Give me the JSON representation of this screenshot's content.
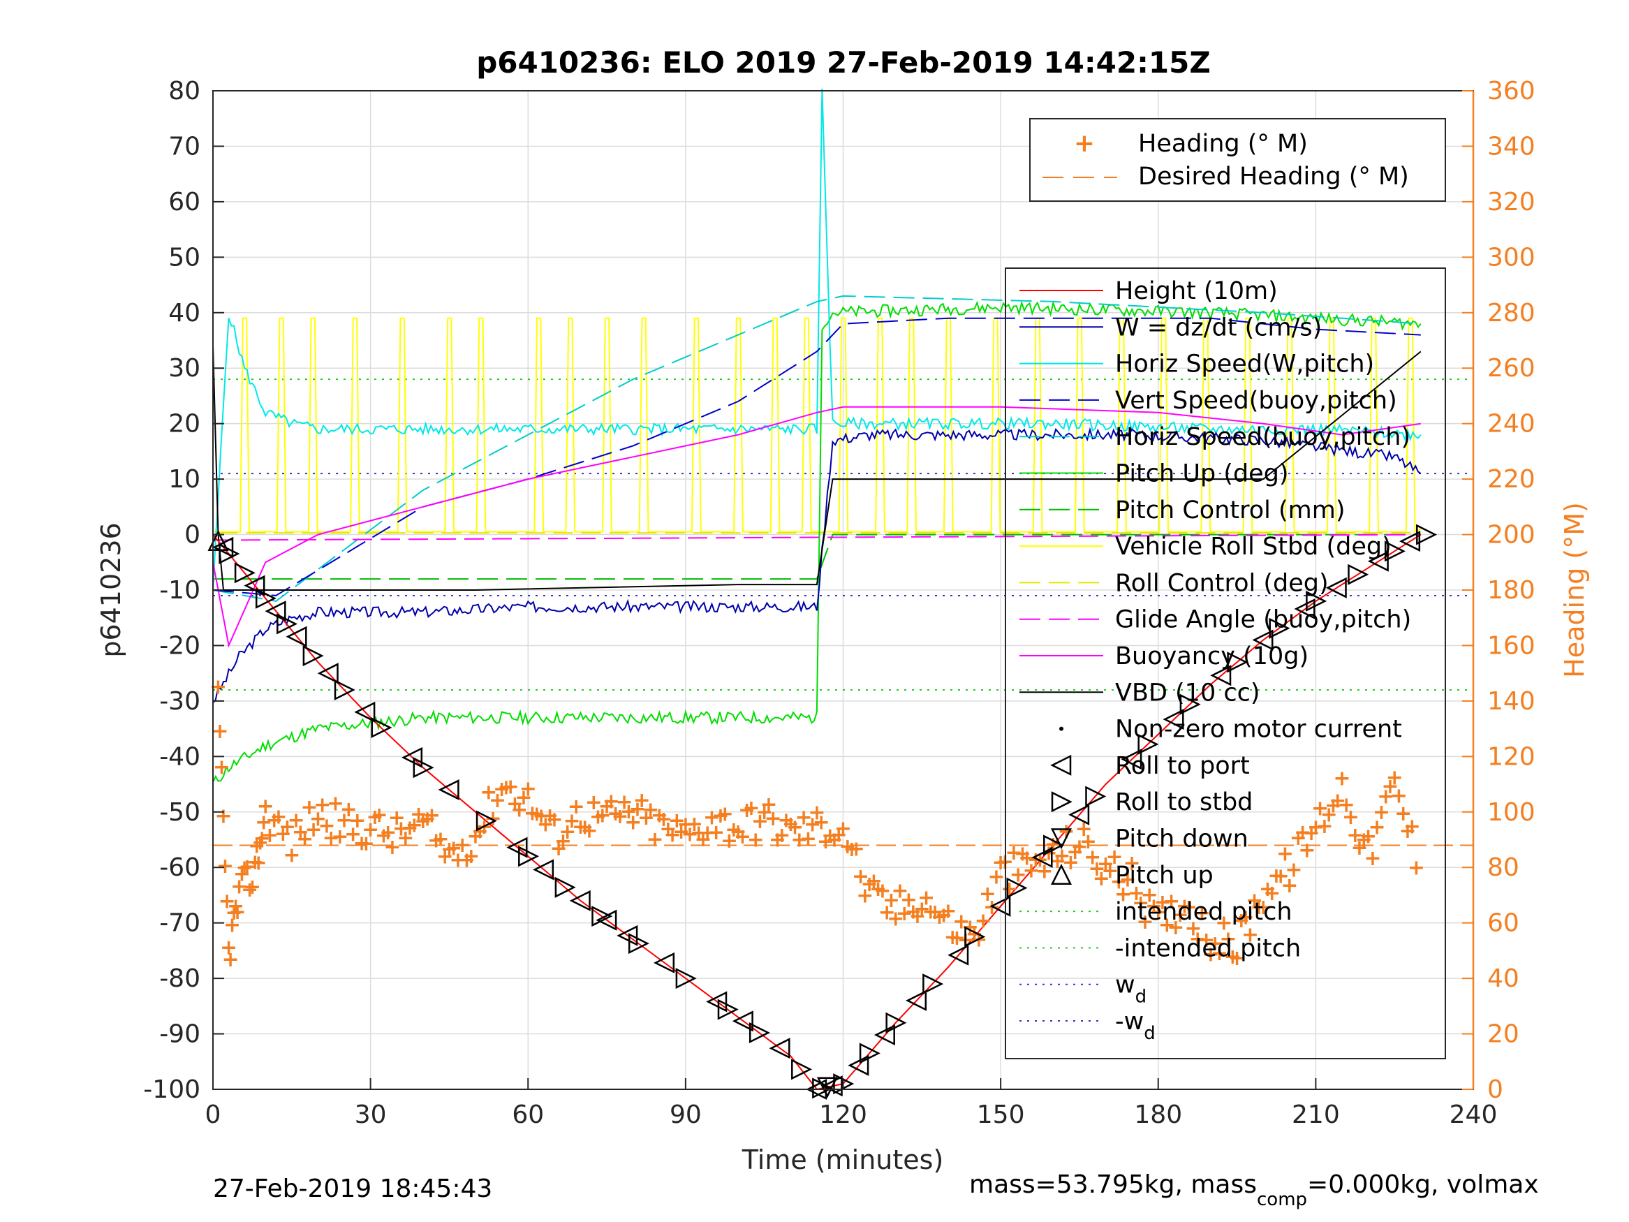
{
  "chart_data": {
    "type": "line",
    "title": "p6410236: ELO 2019 27-Feb-2019 14:42:15Z",
    "xlabel": "Time (minutes)",
    "ylabel_left": "p6410236",
    "ylabel_right": "Heading (°M)",
    "xlim": [
      0,
      240
    ],
    "ylim_left": [
      -100,
      80
    ],
    "ylim_right": [
      0,
      360
    ],
    "x_ticks": [
      "0",
      "30",
      "60",
      "90",
      "120",
      "150",
      "180",
      "210",
      "240"
    ],
    "y_ticks_left": [
      "80",
      "70",
      "60",
      "50",
      "40",
      "30",
      "20",
      "10",
      "0",
      "-10",
      "-20",
      "-30",
      "-40",
      "-50",
      "-60",
      "-70",
      "-80",
      "-90",
      "-100"
    ],
    "y_ticks_right": [
      "360",
      "340",
      "320",
      "300",
      "280",
      "260",
      "240",
      "220",
      "200",
      "180",
      "160",
      "140",
      "120",
      "100",
      "80",
      "60",
      "40",
      "20",
      "0"
    ],
    "grid": true,
    "colors": {
      "height": "#ff0000",
      "w": "#0000aa",
      "horiz_w": "#00e8e8",
      "vert_buoy": "#0000cc",
      "horiz_buoy": "#00cccc",
      "pitch_up": "#00dd00",
      "pitch_control": "#00bb00",
      "roll": "#ffff00",
      "roll_control": "#e6e600",
      "glide": "#ff00ff",
      "buoyancy": "#ff00ff",
      "vbd": "#000000",
      "heading": "#f47f20",
      "intended_pitch": "#22cc22",
      "wd": "#3333cc"
    },
    "legend_top": {
      "placement": "top-right",
      "items": [
        "Heading (° M)",
        "Desired Heading (° M)"
      ]
    },
    "legend_main": {
      "placement": "right",
      "items": [
        "Height (10m)",
        "W = dz/dt (cm/s)",
        "Horiz Speed(W,pitch)",
        "Vert Speed(buoy,pitch)",
        "Horiz Speed(buoy,pitch)",
        "Pitch Up (deg)",
        "Pitch Control (mm)",
        "Vehicle Roll Stbd (deg)",
        "Roll Control (deg)",
        "Glide Angle (buoy,pitch)",
        "Buoyancy (10g)",
        "VBD (10 cc)",
        "Non-zero motor current",
        "Roll to port",
        "Roll to stbd",
        "Pitch down",
        "Pitch up",
        "intended pitch",
        "-intended pitch"
      ],
      "wd_label": "w",
      "wd_sub": "d",
      "neg_wd_label": "-w",
      "neg_wd_sub": "d"
    },
    "series": [
      {
        "name": "Height (10m)",
        "x": [
          0,
          10,
          20,
          30,
          40,
          50,
          60,
          70,
          80,
          90,
          100,
          110,
          115,
          120,
          130,
          140,
          150,
          160,
          170,
          180,
          190,
          200,
          210,
          220,
          230
        ],
        "y": [
          0,
          -11.5,
          -23,
          -33,
          -42,
          -50,
          -58,
          -66,
          -73,
          -80,
          -87,
          -94,
          -100,
          -99,
          -88,
          -78,
          -67,
          -56,
          -45,
          -36,
          -27,
          -19,
          -12,
          -6,
          0
        ]
      },
      {
        "name": "W = dz/dt (cm/s)",
        "x": [
          0,
          5,
          10,
          15,
          20,
          40,
          60,
          80,
          100,
          115,
          118,
          125,
          150,
          175,
          200,
          225,
          230
        ],
        "y": [
          -30,
          -22,
          -17,
          -15,
          -14,
          -14,
          -13,
          -13,
          -13,
          -13,
          17,
          18,
          18,
          18,
          17,
          14,
          11
        ]
      },
      {
        "name": "Horiz Speed(W,pitch)",
        "x": [
          0,
          3,
          6,
          10,
          15,
          20,
          40,
          60,
          80,
          100,
          115,
          116,
          118,
          130,
          160,
          190,
          210,
          230
        ],
        "y": [
          -10,
          40,
          30,
          22,
          20,
          19,
          19,
          19,
          19,
          19,
          19,
          80,
          20,
          20,
          20,
          19,
          19,
          18
        ]
      },
      {
        "name": "Vert Speed(buoy,pitch)",
        "x": [
          0,
          12,
          40,
          60,
          80,
          100,
          115,
          120,
          140,
          160,
          190,
          210,
          230
        ],
        "y": [
          -10,
          -11,
          5,
          10,
          16,
          24,
          33,
          38,
          39,
          39,
          39,
          37,
          36
        ]
      },
      {
        "name": "Horiz Speed(buoy,pitch)",
        "x": [
          0,
          12,
          40,
          60,
          80,
          100,
          115,
          120,
          160,
          200,
          230
        ],
        "y": [
          -10,
          -12,
          8,
          18,
          28,
          36,
          42,
          43,
          42,
          40,
          38
        ]
      },
      {
        "name": "Pitch Up (deg)",
        "x": [
          0,
          3,
          10,
          20,
          40,
          60,
          80,
          100,
          115,
          116,
          118,
          150,
          190,
          230
        ],
        "y": [
          -45,
          -42,
          -38,
          -35,
          -33,
          -33,
          -33,
          -33,
          -33,
          38,
          40,
          41,
          40,
          38
        ]
      },
      {
        "name": "Pitch Control (mm)",
        "x": [
          0,
          10,
          60,
          115,
          118,
          230
        ],
        "y": [
          -8,
          -8,
          -8,
          -8,
          0,
          0
        ]
      },
      {
        "name": "Glide Angle (buoy,pitch)",
        "x": [
          0,
          230
        ],
        "y": [
          -1,
          0
        ]
      },
      {
        "name": "Buoyancy (10g)",
        "x": [
          0,
          3,
          10,
          20,
          40,
          60,
          80,
          100,
          115,
          120,
          150,
          180,
          200,
          215,
          230
        ],
        "y": [
          -5,
          -20,
          -5,
          0,
          5,
          10,
          14,
          18,
          22,
          23,
          23,
          22,
          20,
          18,
          20
        ]
      },
      {
        "name": "VBD (10 cc)",
        "x": [
          0,
          1,
          2,
          10,
          50,
          100,
          115,
          118,
          200,
          230
        ],
        "y": [
          34,
          0,
          -10,
          -10,
          -10,
          -9,
          -9,
          10,
          10,
          33
        ]
      },
      {
        "name": "intended pitch",
        "y": [
          28,
          28
        ]
      },
      {
        "name": "-intended pitch",
        "y": [
          -28,
          -28
        ]
      },
      {
        "name": "w_d",
        "y": [
          11,
          11
        ]
      },
      {
        "name": "-w_d",
        "y": [
          -11,
          -11
        ]
      },
      {
        "name": "Desired Heading (° M)",
        "y_right": [
          88,
          88
        ]
      },
      {
        "name": "Heading (° M)",
        "x": [
          1,
          3,
          5,
          8,
          10,
          15,
          20,
          25,
          30,
          35,
          40,
          45,
          50,
          55,
          60,
          65,
          70,
          75,
          80,
          85,
          90,
          95,
          100,
          105,
          110,
          115,
          120,
          125,
          130,
          135,
          140,
          145,
          150,
          155,
          160,
          165,
          170,
          175,
          180,
          185,
          190,
          195,
          200,
          205,
          210,
          215,
          220,
          225,
          230
        ],
        "y_right": [
          140,
          50,
          70,
          80,
          100,
          90,
          100,
          95,
          95,
          92,
          96,
          85,
          92,
          110,
          105,
          92,
          100,
          98,
          100,
          95,
          92,
          98,
          95,
          98,
          93,
          95,
          95,
          70,
          65,
          70,
          60,
          55,
          78,
          80,
          84,
          90,
          80,
          75,
          60,
          68,
          55,
          52,
          72,
          80,
          95,
          110,
          85,
          110,
          80
        ]
      }
    ],
    "markers": {
      "roll_port_x": [
        2,
        8,
        12,
        16,
        22,
        29,
        38,
        45,
        58,
        63,
        70,
        75,
        79,
        86,
        96,
        101,
        108,
        115,
        118,
        123,
        128,
        134,
        142,
        150,
        158,
        165,
        175,
        183,
        192,
        200,
        208,
        214,
        222,
        228
      ],
      "roll_stbd_x": [
        3,
        6,
        10,
        14,
        19,
        25,
        32,
        40,
        52,
        60,
        67,
        74,
        81,
        90,
        98,
        104,
        112,
        116,
        120,
        125,
        130,
        137,
        145,
        153,
        160,
        168,
        178,
        186,
        195,
        203,
        210,
        218,
        225,
        231
      ],
      "pitch_up_x": [
        1
      ],
      "pitch_down_x": [
        117
      ]
    },
    "roll_spikes_x": [
      6,
      13,
      19,
      27,
      36,
      45,
      51,
      62,
      68,
      75,
      82,
      92,
      100,
      107,
      113,
      120,
      127,
      133,
      140,
      149,
      157,
      165,
      173,
      181,
      189,
      197,
      205,
      213,
      221,
      228
    ],
    "footer_left": "27-Feb-2019 18:45:43",
    "footer_right_a": "mass=53.795kg, mass",
    "footer_right_sub": "comp",
    "footer_right_b": "=0.000kg, volmax"
  }
}
